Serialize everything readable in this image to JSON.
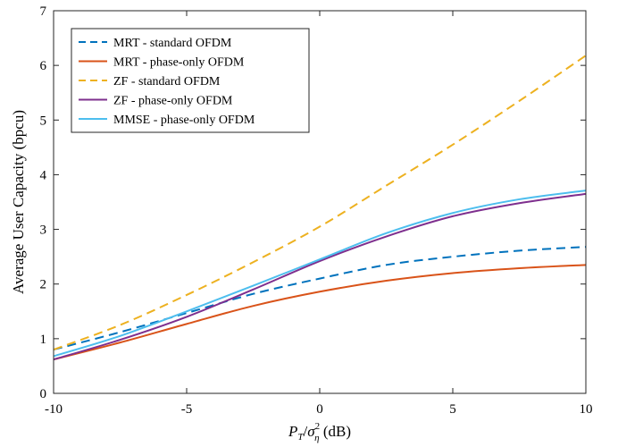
{
  "chart_data": {
    "type": "line",
    "xlabel": "P_T/σ_η² (dB)",
    "ylabel": "Average User Capacity (bpcu)",
    "xlim": [
      -10,
      10
    ],
    "ylim": [
      0,
      7
    ],
    "xticks": [
      -10,
      -5,
      0,
      5,
      10
    ],
    "yticks": [
      0,
      1,
      2,
      3,
      4,
      5,
      6,
      7
    ],
    "xtick_labels": [
      "-10",
      "-5",
      "0",
      "5",
      "10"
    ],
    "ytick_labels": [
      "0",
      "1",
      "2",
      "3",
      "4",
      "5",
      "6",
      "7"
    ],
    "grid": false,
    "legend_position": "top-left",
    "x": [
      -10,
      -7.5,
      -5,
      -2.5,
      0,
      2.5,
      5,
      7.5,
      10
    ],
    "series": [
      {
        "name": "MRT - standard OFDM",
        "color": "#0072BD",
        "dash": "dashed",
        "values": [
          0.8,
          1.12,
          1.47,
          1.82,
          2.1,
          2.35,
          2.5,
          2.61,
          2.68
        ]
      },
      {
        "name": "MRT - phase-only OFDM",
        "color": "#D95319",
        "dash": "solid",
        "values": [
          0.62,
          0.93,
          1.27,
          1.6,
          1.86,
          2.06,
          2.2,
          2.29,
          2.35
        ]
      },
      {
        "name": "ZF - standard OFDM",
        "color": "#EDB120",
        "dash": "dashed",
        "values": [
          0.8,
          1.25,
          1.8,
          2.4,
          3.05,
          3.8,
          4.55,
          5.35,
          6.18
        ]
      },
      {
        "name": "ZF - phase-only OFDM",
        "color": "#7E2F8E",
        "dash": "solid",
        "values": [
          0.62,
          0.98,
          1.4,
          1.9,
          2.42,
          2.87,
          3.24,
          3.48,
          3.65
        ]
      },
      {
        "name": "MMSE - phase-only OFDM",
        "color": "#4DBEEE",
        "dash": "solid",
        "values": [
          0.68,
          1.05,
          1.5,
          1.97,
          2.45,
          2.93,
          3.3,
          3.55,
          3.71
        ]
      }
    ]
  }
}
